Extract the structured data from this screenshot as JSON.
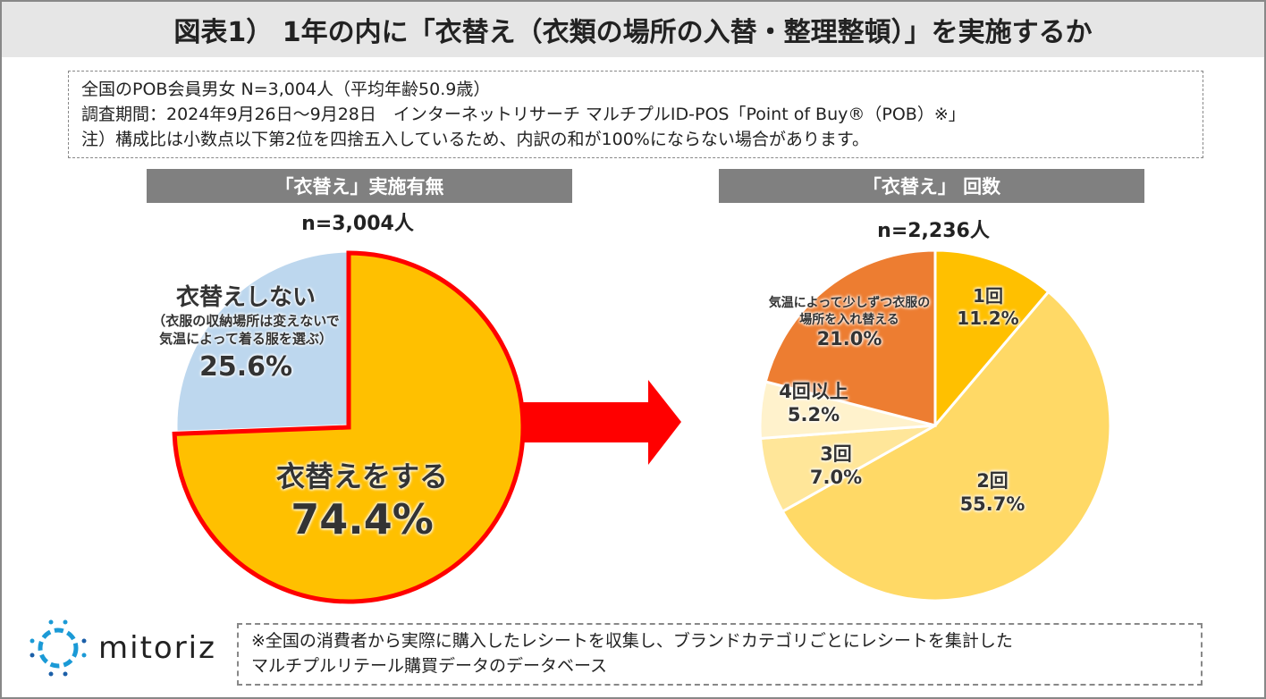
{
  "title": "図表1） 1年の内に「衣替え（衣類の場所の入替・整理整頓）」を実施するか",
  "notes": [
    "全国のPOB会員男女 N=3,004人（平均年齢50.9歳）",
    "調査期間：2024年9月26日～9月28日　インターネットリサーチ マルチプルID-POS「Point of Buy®（POB）※」",
    "注）構成比は小数点以下第2位を四捨五入しているため、内訳の和が100%にならない場合があります。"
  ],
  "footer": [
    "※全国の消費者から実際に購入したレシートを収集し、ブランドカテゴリごとにレシートを集計した",
    "マルチプルリテール購買データのデータベース"
  ],
  "logo": "mitoriz",
  "chart_data": [
    {
      "type": "pie",
      "title": "「衣替え」実施有無",
      "n": "n=3,004人",
      "slices": [
        {
          "label": "衣替えをする",
          "value": 74.4,
          "display": "74.4%",
          "color": "#FFC000"
        },
        {
          "label": "衣替えしない",
          "sublabel": [
            "（衣服の収納場所は変えないで",
            "気温によって着る服を選ぶ）"
          ],
          "value": 25.6,
          "display": "25.6%",
          "color": "#BDD7EE"
        }
      ]
    },
    {
      "type": "pie",
      "title": "「衣替え」 回数",
      "n": "n=2,236人",
      "slices": [
        {
          "label": "1回",
          "value": 11.2,
          "display": "11.2%",
          "color": "#FFC000"
        },
        {
          "label": "2回",
          "value": 55.7,
          "display": "55.7%",
          "color": "#FFD966"
        },
        {
          "label": "3回",
          "value": 7.0,
          "display": "7.0%",
          "color": "#FFE699"
        },
        {
          "label": "4回以上",
          "value": 5.2,
          "display": "5.2%",
          "color": "#FFF2CC"
        },
        {
          "label": "気温によって少しずつ衣服の場所を入れ替える",
          "value": 21.0,
          "display": "21.0%",
          "color": "#ED7D31"
        }
      ]
    }
  ]
}
